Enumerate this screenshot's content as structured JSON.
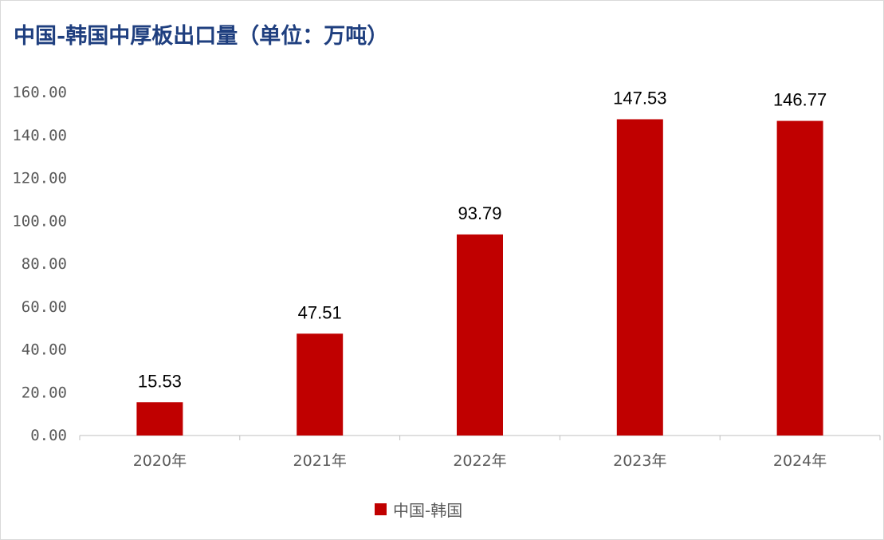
{
  "colors": {
    "bar": "#c00000",
    "title": "#1f3f7f",
    "axis": "#bfbfbf",
    "text": "#595959"
  },
  "chart_data": {
    "type": "bar",
    "title": "中国-韩国中厚板出口量（单位：万吨）",
    "xlabel": "",
    "ylabel": "",
    "categories": [
      "2020年",
      "2021年",
      "2022年",
      "2023年",
      "2024年"
    ],
    "series": [
      {
        "name": "中国-韩国",
        "values": [
          15.53,
          47.51,
          93.79,
          147.53,
          146.77
        ],
        "labels": [
          "15.53",
          "47.51",
          "93.79",
          "147.53",
          "146.77"
        ]
      }
    ],
    "ylim": [
      0,
      160
    ],
    "yticks": [
      "0.00",
      "20.00",
      "40.00",
      "60.00",
      "80.00",
      "100.00",
      "120.00",
      "140.00",
      "160.00"
    ],
    "grid": false,
    "legend_position": "bottom"
  }
}
